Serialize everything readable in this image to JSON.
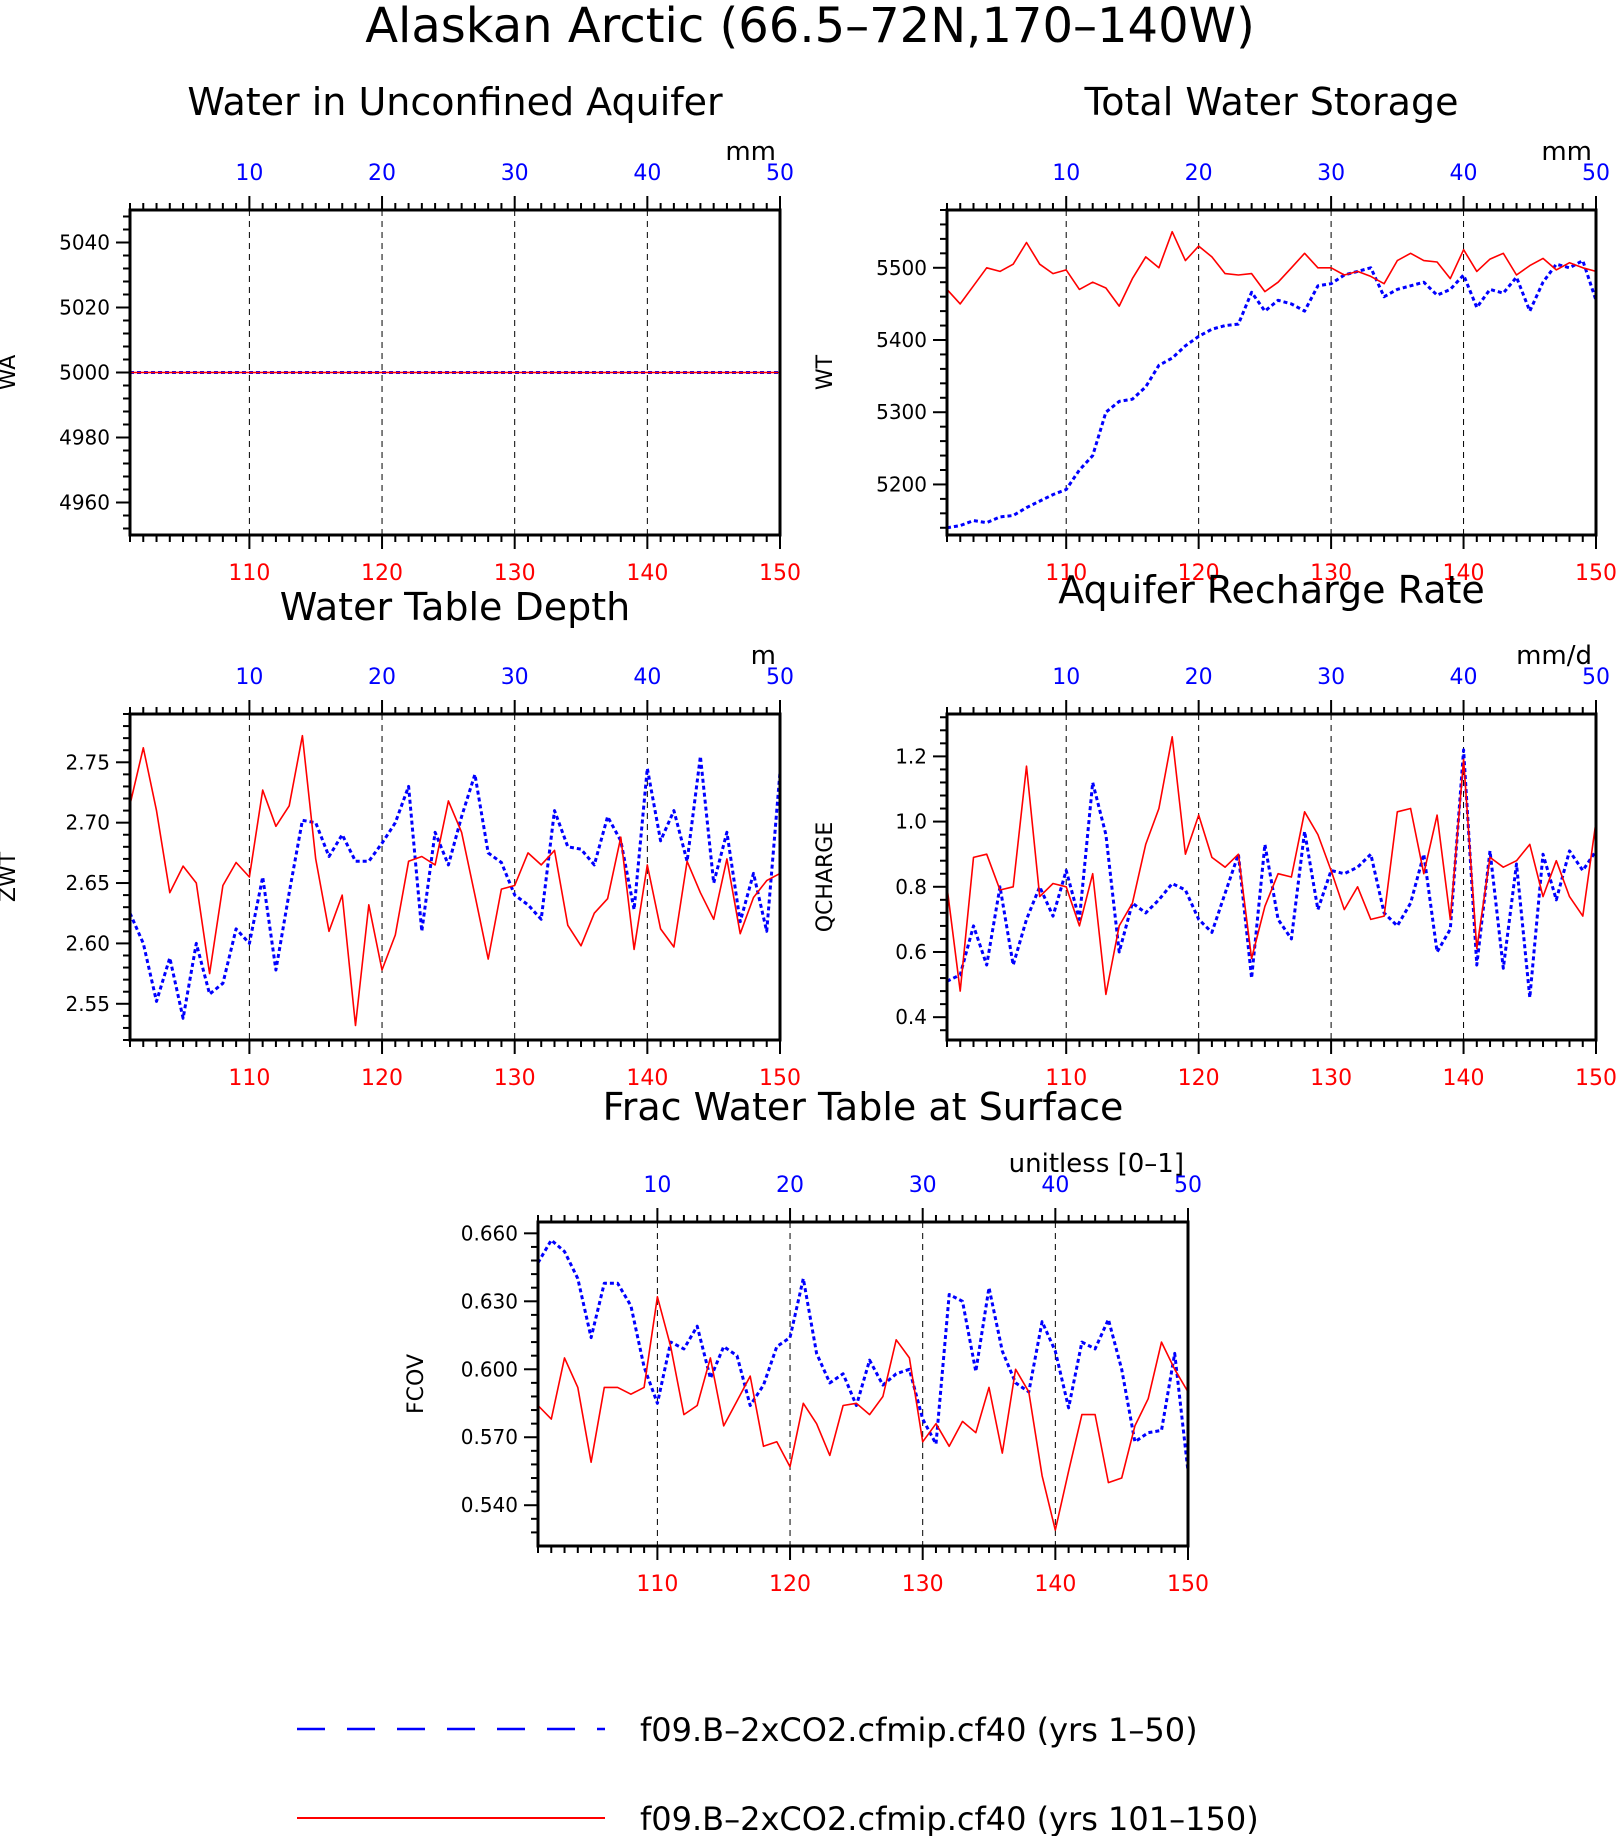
{
  "figure_title": "Alaskan Arctic (66.5–72N,170–140W)",
  "legend": [
    {
      "label": "f09.B–2xCO2.cfmip.cf40 (yrs 1–50)",
      "color": "#0000ff",
      "style": "dashed"
    },
    {
      "label": "f09.B–2xCO2.cfmip.cf40 (yrs 101–150)",
      "color": "#ff0000",
      "style": "solid"
    }
  ],
  "chart_data": [
    {
      "type": "line",
      "title": "Water in Unconfined Aquifer",
      "ylabel": "WA",
      "units": "mm",
      "ylim": [
        4950,
        5050
      ],
      "yticks": [
        "4960",
        "4980",
        "5000",
        "5020",
        "5040"
      ],
      "xlim_red": [
        101,
        150
      ],
      "xlim_blue": [
        1,
        50
      ],
      "xticks_red": [
        "110",
        "120",
        "130",
        "140",
        "150"
      ],
      "xticks_blue": [
        "10",
        "20",
        "30",
        "40",
        "50"
      ],
      "grid": "vertical-dashed",
      "series": [
        {
          "color": "#0000ff",
          "style": "dotted",
          "values": [
            5000,
            5000,
            5000,
            5000,
            5000,
            5000,
            5000,
            5000,
            5000,
            5000,
            5000,
            5000,
            5000,
            5000,
            5000,
            5000,
            5000,
            5000,
            5000,
            5000,
            5000,
            5000,
            5000,
            5000,
            5000,
            5000,
            5000,
            5000,
            5000,
            5000,
            5000,
            5000,
            5000,
            5000,
            5000,
            5000,
            5000,
            5000,
            5000,
            5000,
            5000,
            5000,
            5000,
            5000,
            5000,
            5000,
            5000,
            5000,
            5000,
            5000
          ]
        },
        {
          "color": "#ff0000",
          "style": "solid",
          "values": [
            5000,
            5000,
            5000,
            5000,
            5000,
            5000,
            5000,
            5000,
            5000,
            5000,
            5000,
            5000,
            5000,
            5000,
            5000,
            5000,
            5000,
            5000,
            5000,
            5000,
            5000,
            5000,
            5000,
            5000,
            5000,
            5000,
            5000,
            5000,
            5000,
            5000,
            5000,
            5000,
            5000,
            5000,
            5000,
            5000,
            5000,
            5000,
            5000,
            5000,
            5000,
            5000,
            5000,
            5000,
            5000,
            5000,
            5000,
            5000,
            5000,
            5000
          ]
        }
      ]
    },
    {
      "type": "line",
      "title": "Total Water Storage",
      "ylabel": "WT",
      "units": "mm",
      "ylim": [
        5130,
        5580
      ],
      "yticks": [
        "5200",
        "5300",
        "5400",
        "5500"
      ],
      "xlim_red": [
        101,
        150
      ],
      "xlim_blue": [
        1,
        50
      ],
      "xticks_red": [
        "110",
        "120",
        "130",
        "140",
        "150"
      ],
      "xticks_blue": [
        "10",
        "20",
        "30",
        "40",
        "50"
      ],
      "grid": "vertical-dashed",
      "series": [
        {
          "color": "#0000ff",
          "style": "dotted",
          "values": [
            5140,
            5143,
            5150,
            5147,
            5155,
            5157,
            5168,
            5177,
            5186,
            5193,
            5220,
            5240,
            5300,
            5315,
            5318,
            5335,
            5365,
            5375,
            5392,
            5405,
            5415,
            5420,
            5422,
            5466,
            5440,
            5455,
            5450,
            5440,
            5475,
            5478,
            5490,
            5495,
            5500,
            5460,
            5470,
            5475,
            5480,
            5462,
            5470,
            5490,
            5445,
            5470,
            5465,
            5487,
            5440,
            5480,
            5505,
            5500,
            5510,
            5455
          ]
        },
        {
          "color": "#ff0000",
          "style": "solid",
          "values": [
            5470,
            5450,
            5475,
            5500,
            5495,
            5505,
            5535,
            5505,
            5492,
            5497,
            5470,
            5480,
            5472,
            5447,
            5485,
            5515,
            5500,
            5550,
            5510,
            5530,
            5515,
            5492,
            5490,
            5492,
            5467,
            5480,
            5500,
            5520,
            5500,
            5500,
            5490,
            5495,
            5488,
            5478,
            5510,
            5520,
            5510,
            5508,
            5485,
            5525,
            5495,
            5512,
            5520,
            5490,
            5503,
            5513,
            5497,
            5507,
            5500,
            5495
          ]
        }
      ]
    },
    {
      "type": "line",
      "title": "Water Table Depth",
      "ylabel": "ZWT",
      "units": "m",
      "ylim": [
        2.52,
        2.79
      ],
      "yticks": [
        "2.55",
        "2.60",
        "2.65",
        "2.70",
        "2.75"
      ],
      "xlim_red": [
        101,
        150
      ],
      "xlim_blue": [
        1,
        50
      ],
      "xticks_red": [
        "110",
        "120",
        "130",
        "140",
        "150"
      ],
      "xticks_blue": [
        "10",
        "20",
        "30",
        "40",
        "50"
      ],
      "grid": "vertical-dashed",
      "series": [
        {
          "color": "#0000ff",
          "style": "dotted",
          "values": [
            2.625,
            2.6,
            2.552,
            2.588,
            2.538,
            2.6,
            2.558,
            2.567,
            2.612,
            2.6,
            2.655,
            2.578,
            2.642,
            2.702,
            2.7,
            2.672,
            2.69,
            2.668,
            2.668,
            2.683,
            2.7,
            2.73,
            2.61,
            2.692,
            2.665,
            2.705,
            2.74,
            2.675,
            2.667,
            2.64,
            2.632,
            2.62,
            2.71,
            2.68,
            2.678,
            2.665,
            2.705,
            2.685,
            2.628,
            2.745,
            2.685,
            2.71,
            2.668,
            2.755,
            2.65,
            2.692,
            2.618,
            2.658,
            2.61,
            2.742
          ]
        },
        {
          "color": "#ff0000",
          "style": "solid",
          "values": [
            2.715,
            2.762,
            2.71,
            2.642,
            2.664,
            2.65,
            2.575,
            2.648,
            2.667,
            2.655,
            2.727,
            2.697,
            2.714,
            2.772,
            2.67,
            2.61,
            2.64,
            2.532,
            2.632,
            2.578,
            2.607,
            2.668,
            2.672,
            2.665,
            2.718,
            2.692,
            2.64,
            2.587,
            2.645,
            2.648,
            2.675,
            2.665,
            2.677,
            2.615,
            2.598,
            2.625,
            2.637,
            2.688,
            2.595,
            2.665,
            2.612,
            2.597,
            2.668,
            2.642,
            2.62,
            2.67,
            2.608,
            2.638,
            2.652,
            2.658
          ]
        }
      ]
    },
    {
      "type": "line",
      "title": "Aquifer Recharge Rate",
      "ylabel": "QCHARGE",
      "units": "mm/d",
      "ylim": [
        0.33,
        1.33
      ],
      "yticks": [
        "0.4",
        "0.6",
        "0.8",
        "1.0",
        "1.2"
      ],
      "xlim_red": [
        101,
        150
      ],
      "xlim_blue": [
        1,
        50
      ],
      "xticks_red": [
        "110",
        "120",
        "130",
        "140",
        "150"
      ],
      "xticks_blue": [
        "10",
        "20",
        "30",
        "40",
        "50"
      ],
      "grid": "vertical-dashed",
      "series": [
        {
          "color": "#0000ff",
          "style": "dotted",
          "values": [
            0.51,
            0.53,
            0.68,
            0.56,
            0.8,
            0.56,
            0.7,
            0.8,
            0.71,
            0.85,
            0.7,
            1.12,
            0.96,
            0.6,
            0.75,
            0.72,
            0.76,
            0.81,
            0.79,
            0.7,
            0.66,
            0.78,
            0.9,
            0.52,
            0.93,
            0.7,
            0.64,
            0.97,
            0.73,
            0.85,
            0.84,
            0.86,
            0.9,
            0.72,
            0.68,
            0.75,
            0.9,
            0.6,
            0.67,
            1.22,
            0.56,
            0.91,
            0.55,
            0.87,
            0.46,
            0.9,
            0.76,
            0.91,
            0.85,
            0.91
          ]
        },
        {
          "color": "#ff0000",
          "style": "solid",
          "values": [
            0.8,
            0.48,
            0.89,
            0.9,
            0.79,
            0.8,
            1.17,
            0.77,
            0.81,
            0.8,
            0.68,
            0.84,
            0.47,
            0.68,
            0.75,
            0.93,
            1.04,
            1.26,
            0.9,
            1.02,
            0.89,
            0.86,
            0.9,
            0.58,
            0.74,
            0.84,
            0.83,
            1.03,
            0.96,
            0.85,
            0.73,
            0.8,
            0.7,
            0.71,
            1.03,
            1.04,
            0.84,
            1.02,
            0.7,
            1.19,
            0.61,
            0.89,
            0.86,
            0.88,
            0.93,
            0.77,
            0.88,
            0.77,
            0.71,
            1.0
          ]
        }
      ]
    },
    {
      "type": "line",
      "title": "Frac Water Table at Surface",
      "ylabel": "FCOV",
      "units": "unitless [0–1]",
      "ylim": [
        0.522,
        0.665
      ],
      "yticks": [
        "0.540",
        "0.570",
        "0.600",
        "0.630",
        "0.660"
      ],
      "xlim_red": [
        101,
        150
      ],
      "xlim_blue": [
        1,
        50
      ],
      "xticks_red": [
        "110",
        "120",
        "130",
        "140",
        "150"
      ],
      "xticks_blue": [
        "10",
        "20",
        "30",
        "40",
        "50"
      ],
      "grid": "vertical-dashed",
      "series": [
        {
          "color": "#0000ff",
          "style": "dotted",
          "values": [
            0.647,
            0.657,
            0.652,
            0.64,
            0.614,
            0.638,
            0.638,
            0.628,
            0.601,
            0.585,
            0.612,
            0.609,
            0.619,
            0.596,
            0.61,
            0.606,
            0.584,
            0.593,
            0.61,
            0.614,
            0.64,
            0.607,
            0.594,
            0.598,
            0.584,
            0.604,
            0.593,
            0.598,
            0.6,
            0.578,
            0.567,
            0.633,
            0.63,
            0.599,
            0.636,
            0.608,
            0.594,
            0.59,
            0.621,
            0.608,
            0.583,
            0.612,
            0.609,
            0.622,
            0.6,
            0.568,
            0.572,
            0.573,
            0.607,
            0.555
          ]
        },
        {
          "color": "#ff0000",
          "style": "solid",
          "values": [
            0.584,
            0.578,
            0.605,
            0.592,
            0.559,
            0.592,
            0.592,
            0.589,
            0.592,
            0.632,
            0.61,
            0.58,
            0.584,
            0.605,
            0.575,
            0.586,
            0.597,
            0.566,
            0.568,
            0.557,
            0.585,
            0.576,
            0.562,
            0.584,
            0.585,
            0.58,
            0.588,
            0.613,
            0.605,
            0.568,
            0.576,
            0.566,
            0.577,
            0.572,
            0.592,
            0.563,
            0.6,
            0.59,
            0.553,
            0.529,
            0.555,
            0.58,
            0.58,
            0.55,
            0.552,
            0.575,
            0.587,
            0.612,
            0.6,
            0.59
          ]
        }
      ]
    }
  ]
}
